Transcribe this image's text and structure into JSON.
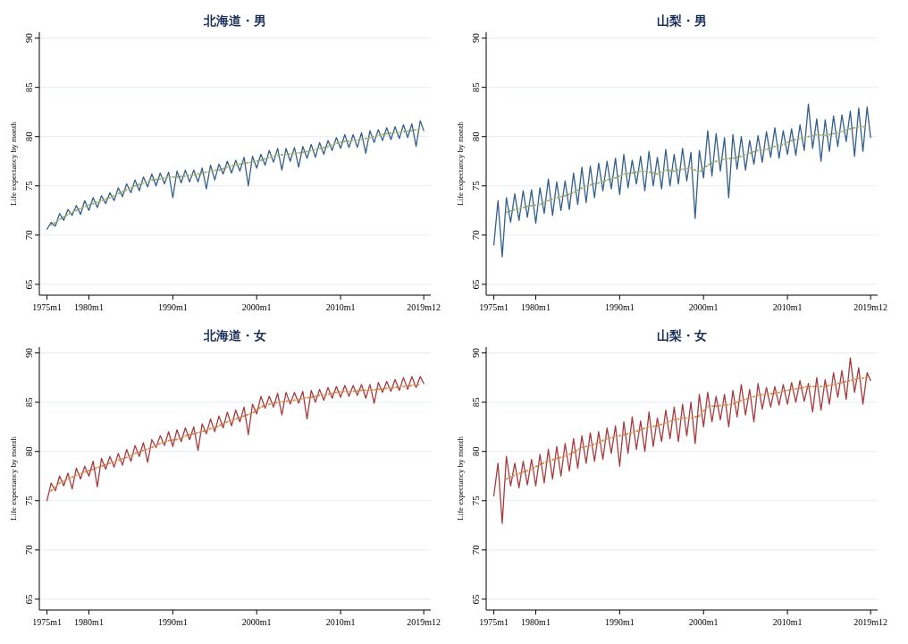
{
  "chart_data": [
    {
      "type": "line",
      "title": "北海道・男",
      "ylabel": "Life expectancy by month",
      "grid": "y",
      "xlim": [
        "1974-02",
        "2020-10"
      ],
      "ylim": [
        63.9,
        90.6
      ],
      "yticks": [
        65,
        70,
        75,
        80,
        85,
        90
      ],
      "xticks": [
        {
          "value": "1975-01",
          "label": "1975m1"
        },
        {
          "value": "1980-01",
          "label": "1980m1"
        },
        {
          "value": "1990-01",
          "label": "1990m1"
        },
        {
          "value": "2000-01",
          "label": "2000m1"
        },
        {
          "value": "2010-01",
          "label": "2010m1"
        },
        {
          "value": "2019-12",
          "label": "2019m12"
        }
      ],
      "x": [
        "1975-01",
        "1975-07",
        "1976-01",
        "1976-07",
        "1977-01",
        "1977-07",
        "1978-01",
        "1978-07",
        "1979-01",
        "1979-07",
        "1980-01",
        "1980-07",
        "1981-01",
        "1981-07",
        "1982-01",
        "1982-07",
        "1983-01",
        "1983-07",
        "1984-01",
        "1984-07",
        "1985-01",
        "1985-07",
        "1986-01",
        "1986-07",
        "1987-01",
        "1987-07",
        "1988-01",
        "1988-07",
        "1989-01",
        "1989-07",
        "1990-01",
        "1990-07",
        "1991-01",
        "1991-07",
        "1992-01",
        "1992-07",
        "1993-01",
        "1993-07",
        "1994-01",
        "1994-07",
        "1995-01",
        "1995-07",
        "1996-01",
        "1996-07",
        "1997-01",
        "1997-07",
        "1998-01",
        "1998-07",
        "1999-01",
        "1999-07",
        "2000-01",
        "2000-07",
        "2001-01",
        "2001-07",
        "2002-01",
        "2002-07",
        "2003-01",
        "2003-07",
        "2004-01",
        "2004-07",
        "2005-01",
        "2005-07",
        "2006-01",
        "2006-07",
        "2007-01",
        "2007-07",
        "2008-01",
        "2008-07",
        "2009-01",
        "2009-07",
        "2010-01",
        "2010-07",
        "2011-01",
        "2011-07",
        "2012-01",
        "2012-07",
        "2013-01",
        "2013-07",
        "2014-01",
        "2014-07",
        "2015-01",
        "2015-07",
        "2016-01",
        "2016-07",
        "2017-01",
        "2017-07",
        "2018-01",
        "2018-07",
        "2019-01",
        "2019-07",
        "2019-12"
      ],
      "series": [
        {
          "color": "#335f8a",
          "values": [
            70.6,
            71.3,
            70.9,
            72.2,
            71.5,
            72.6,
            72.0,
            73.0,
            72.1,
            73.5,
            72.5,
            73.8,
            72.8,
            74.0,
            73.2,
            74.3,
            73.5,
            74.8,
            73.9,
            75.2,
            74.3,
            75.6,
            74.5,
            75.9,
            74.9,
            76.2,
            75.0,
            76.3,
            75.2,
            76.4,
            73.8,
            76.5,
            75.3,
            76.6,
            75.4,
            76.6,
            75.4,
            76.8,
            74.7,
            77.1,
            75.6,
            77.2,
            76.2,
            77.5,
            76.3,
            77.6,
            76.5,
            77.9,
            75.0,
            78.0,
            76.8,
            78.2,
            77.1,
            78.6,
            77.4,
            78.8,
            76.6,
            78.8,
            77.5,
            78.9,
            76.9,
            79.0,
            77.8,
            79.2,
            77.9,
            79.4,
            78.2,
            79.6,
            78.6,
            79.9,
            78.8,
            80.2,
            78.9,
            80.2,
            78.9,
            80.4,
            78.3,
            80.6,
            79.4,
            80.7,
            79.6,
            80.9,
            79.7,
            81.0,
            79.8,
            81.2,
            79.9,
            81.3,
            79.0,
            81.6,
            80.6
          ]
        },
        {
          "color": "#9aab6b",
          "line_style": "dotted",
          "x": [
            "1975-07",
            "1976-07",
            "1977-07",
            "1978-07",
            "1979-07",
            "1980-07",
            "1981-07",
            "1982-07",
            "1983-07",
            "1984-07",
            "1985-07",
            "1986-07",
            "1987-07",
            "1988-07",
            "1989-07",
            "1990-07",
            "1991-07",
            "1992-07",
            "1993-07",
            "1994-07",
            "1995-07",
            "1996-07",
            "1997-07",
            "1998-07",
            "1999-07",
            "2000-07",
            "2001-07",
            "2002-07",
            "2003-07",
            "2004-07",
            "2005-07",
            "2006-07",
            "2007-07",
            "2008-07",
            "2009-07",
            "2010-07",
            "2011-07",
            "2012-07",
            "2013-07",
            "2014-07",
            "2015-07",
            "2016-07",
            "2017-07",
            "2018-07",
            "2019-07"
          ],
          "values": [
            71.0,
            71.6,
            72.1,
            72.5,
            72.9,
            73.2,
            73.5,
            73.8,
            74.2,
            74.6,
            75.0,
            75.3,
            75.6,
            75.7,
            75.9,
            75.9,
            76.0,
            76.1,
            76.3,
            76.5,
            76.6,
            76.9,
            77.1,
            77.3,
            77.4,
            77.6,
            77.9,
            78.1,
            78.2,
            78.3,
            78.4,
            78.6,
            78.8,
            79.0,
            79.3,
            79.5,
            79.6,
            79.7,
            79.9,
            80.1,
            80.3,
            80.4,
            80.5,
            80.6,
            80.8
          ]
        }
      ]
    },
    {
      "type": "line",
      "title": "山梨・男",
      "ylabel": "Life expectancy by month",
      "grid": "y",
      "xlim": [
        "1974-02",
        "2020-10"
      ],
      "ylim": [
        63.9,
        90.6
      ],
      "yticks": [
        65,
        70,
        75,
        80,
        85,
        90
      ],
      "xticks": [
        {
          "value": "1975-01",
          "label": "1975m1"
        },
        {
          "value": "1980-01",
          "label": "1980m1"
        },
        {
          "value": "1990-01",
          "label": "1990m1"
        },
        {
          "value": "2000-01",
          "label": "2000m1"
        },
        {
          "value": "2010-01",
          "label": "2010m1"
        },
        {
          "value": "2019-12",
          "label": "2019m12"
        }
      ],
      "x": [
        "1975-01",
        "1975-07",
        "1976-01",
        "1976-07",
        "1977-01",
        "1977-07",
        "1978-01",
        "1978-07",
        "1979-01",
        "1979-07",
        "1980-01",
        "1980-07",
        "1981-01",
        "1981-07",
        "1982-01",
        "1982-07",
        "1983-01",
        "1983-07",
        "1984-01",
        "1984-07",
        "1985-01",
        "1985-07",
        "1986-01",
        "1986-07",
        "1987-01",
        "1987-07",
        "1988-01",
        "1988-07",
        "1989-01",
        "1989-07",
        "1990-01",
        "1990-07",
        "1991-01",
        "1991-07",
        "1992-01",
        "1992-07",
        "1993-01",
        "1993-07",
        "1994-01",
        "1994-07",
        "1995-01",
        "1995-07",
        "1996-01",
        "1996-07",
        "1997-01",
        "1997-07",
        "1998-01",
        "1998-07",
        "1999-01",
        "1999-07",
        "2000-01",
        "2000-07",
        "2001-01",
        "2001-07",
        "2002-01",
        "2002-07",
        "2003-01",
        "2003-07",
        "2004-01",
        "2004-07",
        "2005-01",
        "2005-07",
        "2006-01",
        "2006-07",
        "2007-01",
        "2007-07",
        "2008-01",
        "2008-07",
        "2009-01",
        "2009-07",
        "2010-01",
        "2010-07",
        "2011-01",
        "2011-07",
        "2012-01",
        "2012-07",
        "2013-01",
        "2013-07",
        "2014-01",
        "2014-07",
        "2015-01",
        "2015-07",
        "2016-01",
        "2016-07",
        "2017-01",
        "2017-07",
        "2018-01",
        "2018-07",
        "2019-01",
        "2019-07",
        "2019-12"
      ],
      "series": [
        {
          "color": "#335f8a",
          "values": [
            69.0,
            73.5,
            67.8,
            73.8,
            71.3,
            74.2,
            71.5,
            74.5,
            71.8,
            74.6,
            71.2,
            74.8,
            72.2,
            75.7,
            72.0,
            75.4,
            72.5,
            75.5,
            72.6,
            76.3,
            73.1,
            76.9,
            73.3,
            77.0,
            73.8,
            77.3,
            74.5,
            77.5,
            74.7,
            77.8,
            74.1,
            78.2,
            74.8,
            77.6,
            75.2,
            78.0,
            74.5,
            78.5,
            75.0,
            77.9,
            74.7,
            78.7,
            75.0,
            78.2,
            75.2,
            78.8,
            75.5,
            78.4,
            71.7,
            78.6,
            75.8,
            80.6,
            76.0,
            80.3,
            76.5,
            79.9,
            73.8,
            80.2,
            76.7,
            80.0,
            76.6,
            79.6,
            77.2,
            80.1,
            77.4,
            80.5,
            77.9,
            80.9,
            77.8,
            80.6,
            78.2,
            80.8,
            78.1,
            81.2,
            78.6,
            83.3,
            78.8,
            81.8,
            77.5,
            81.7,
            78.5,
            82.1,
            79.0,
            82.2,
            79.5,
            82.6,
            78.0,
            82.9,
            78.5,
            83.0,
            79.9
          ]
        },
        {
          "color": "#9aab6b",
          "line_style": "dotted",
          "x": [
            "1976-07",
            "1977-07",
            "1978-07",
            "1979-07",
            "1980-07",
            "1981-07",
            "1982-07",
            "1983-07",
            "1984-07",
            "1985-07",
            "1986-07",
            "1987-07",
            "1988-07",
            "1989-07",
            "1990-07",
            "1991-07",
            "1992-07",
            "1993-07",
            "1994-07",
            "1995-07",
            "1996-07",
            "1997-07",
            "1998-07",
            "1999-07",
            "2000-07",
            "2001-07",
            "2002-07",
            "2003-07",
            "2004-07",
            "2005-07",
            "2006-07",
            "2007-07",
            "2008-07",
            "2009-07",
            "2010-07",
            "2011-07",
            "2012-07",
            "2013-07",
            "2014-07",
            "2015-07",
            "2016-07",
            "2017-07",
            "2018-07",
            "2019-07"
          ],
          "values": [
            72.3,
            72.6,
            72.8,
            73.0,
            73.1,
            73.5,
            73.8,
            74.0,
            74.3,
            74.8,
            75.1,
            75.3,
            75.6,
            75.8,
            76.2,
            76.3,
            76.5,
            76.4,
            76.2,
            76.6,
            76.5,
            76.7,
            76.8,
            76.4,
            77.1,
            77.5,
            77.7,
            77.8,
            78.0,
            78.3,
            78.6,
            78.7,
            79.0,
            79.2,
            79.6,
            79.8,
            80.0,
            80.2,
            80.1,
            80.3,
            80.5,
            80.8,
            81.0,
            81.0
          ]
        }
      ]
    },
    {
      "type": "line",
      "title": "北海道・女",
      "ylabel": "Life expectancy by month",
      "grid": "y",
      "xlim": [
        "1974-02",
        "2020-10"
      ],
      "ylim": [
        63.9,
        90.6
      ],
      "yticks": [
        65,
        70,
        75,
        80,
        85,
        90
      ],
      "xticks": [
        {
          "value": "1975-01",
          "label": "1975m1"
        },
        {
          "value": "1980-01",
          "label": "1980m1"
        },
        {
          "value": "1990-01",
          "label": "1990m1"
        },
        {
          "value": "2000-01",
          "label": "2000m1"
        },
        {
          "value": "2010-01",
          "label": "2010m1"
        },
        {
          "value": "2019-12",
          "label": "2019m12"
        }
      ],
      "x": [
        "1975-01",
        "1975-07",
        "1976-01",
        "1976-07",
        "1977-01",
        "1977-07",
        "1978-01",
        "1978-07",
        "1979-01",
        "1979-07",
        "1980-01",
        "1980-07",
        "1981-01",
        "1981-07",
        "1982-01",
        "1982-07",
        "1983-01",
        "1983-07",
        "1984-01",
        "1984-07",
        "1985-01",
        "1985-07",
        "1986-01",
        "1986-07",
        "1987-01",
        "1987-07",
        "1988-01",
        "1988-07",
        "1989-01",
        "1989-07",
        "1990-01",
        "1990-07",
        "1991-01",
        "1991-07",
        "1992-01",
        "1992-07",
        "1993-01",
        "1993-07",
        "1994-01",
        "1994-07",
        "1995-01",
        "1995-07",
        "1996-01",
        "1996-07",
        "1997-01",
        "1997-07",
        "1998-01",
        "1998-07",
        "1999-01",
        "1999-07",
        "2000-01",
        "2000-07",
        "2001-01",
        "2001-07",
        "2002-01",
        "2002-07",
        "2003-01",
        "2003-07",
        "2004-01",
        "2004-07",
        "2005-01",
        "2005-07",
        "2006-01",
        "2006-07",
        "2007-01",
        "2007-07",
        "2008-01",
        "2008-07",
        "2009-01",
        "2009-07",
        "2010-01",
        "2010-07",
        "2011-01",
        "2011-07",
        "2012-01",
        "2012-07",
        "2013-01",
        "2013-07",
        "2014-01",
        "2014-07",
        "2015-01",
        "2015-07",
        "2016-01",
        "2016-07",
        "2017-01",
        "2017-07",
        "2018-01",
        "2018-07",
        "2019-01",
        "2019-07",
        "2019-12"
      ],
      "series": [
        {
          "color": "#a63b3f",
          "values": [
            75.0,
            76.8,
            76.0,
            77.5,
            76.5,
            77.8,
            76.2,
            78.3,
            77.2,
            78.5,
            77.5,
            79.0,
            76.4,
            79.3,
            78.2,
            79.5,
            78.4,
            79.8,
            78.6,
            80.2,
            79.0,
            80.6,
            79.5,
            80.9,
            78.9,
            81.2,
            80.4,
            81.6,
            80.6,
            82.0,
            80.5,
            82.2,
            81.0,
            82.4,
            81.2,
            82.5,
            80.1,
            82.8,
            81.8,
            83.3,
            82.0,
            83.6,
            82.4,
            84.0,
            82.6,
            84.2,
            83.0,
            84.5,
            81.7,
            84.8,
            83.8,
            85.6,
            84.4,
            85.6,
            84.5,
            85.9,
            83.7,
            86.0,
            84.8,
            86.0,
            84.9,
            86.1,
            83.3,
            86.2,
            85.0,
            86.3,
            85.2,
            86.5,
            85.4,
            86.6,
            85.5,
            86.7,
            85.6,
            86.7,
            85.7,
            86.8,
            85.4,
            86.8,
            84.9,
            87.0,
            86.0,
            87.1,
            86.1,
            87.3,
            86.2,
            87.5,
            86.3,
            87.6,
            86.5,
            87.6,
            86.9
          ]
        },
        {
          "color": "#d9884f",
          "line_style": "dotted",
          "x": [
            "1975-07",
            "1976-07",
            "1977-07",
            "1978-07",
            "1979-07",
            "1980-07",
            "1981-07",
            "1982-07",
            "1983-07",
            "1984-07",
            "1985-07",
            "1986-07",
            "1987-07",
            "1988-07",
            "1989-07",
            "1990-07",
            "1991-07",
            "1992-07",
            "1993-07",
            "1994-07",
            "1995-07",
            "1996-07",
            "1997-07",
            "1998-07",
            "1999-07",
            "2000-07",
            "2001-07",
            "2002-07",
            "2003-07",
            "2004-07",
            "2005-07",
            "2006-07",
            "2007-07",
            "2008-07",
            "2009-07",
            "2010-07",
            "2011-07",
            "2012-07",
            "2013-07",
            "2014-07",
            "2015-07",
            "2016-07",
            "2017-07",
            "2018-07",
            "2019-07"
          ],
          "values": [
            76.0,
            76.8,
            77.2,
            77.6,
            77.9,
            78.2,
            78.5,
            78.8,
            79.1,
            79.4,
            79.8,
            80.1,
            80.4,
            80.8,
            81.1,
            81.2,
            81.6,
            81.8,
            82.0,
            82.3,
            82.6,
            83.0,
            83.3,
            83.6,
            83.9,
            84.5,
            84.8,
            85.0,
            85.1,
            85.2,
            85.4,
            85.5,
            85.7,
            85.8,
            86.0,
            86.1,
            86.1,
            86.2,
            86.2,
            86.3,
            86.4,
            86.5,
            86.6,
            86.7,
            86.8
          ]
        }
      ]
    },
    {
      "type": "line",
      "title": "山梨・女",
      "ylabel": "Life expectancy by month",
      "grid": "y",
      "xlim": [
        "1974-02",
        "2020-10"
      ],
      "ylim": [
        63.9,
        90.6
      ],
      "yticks": [
        65,
        70,
        75,
        80,
        85,
        90
      ],
      "xticks": [
        {
          "value": "1975-01",
          "label": "1975m1"
        },
        {
          "value": "1980-01",
          "label": "1980m1"
        },
        {
          "value": "1990-01",
          "label": "1990m1"
        },
        {
          "value": "2000-01",
          "label": "2000m1"
        },
        {
          "value": "2010-01",
          "label": "2010m1"
        },
        {
          "value": "2019-12",
          "label": "2019m12"
        }
      ],
      "x": [
        "1975-01",
        "1975-07",
        "1976-01",
        "1976-07",
        "1977-01",
        "1977-07",
        "1978-01",
        "1978-07",
        "1979-01",
        "1979-07",
        "1980-01",
        "1980-07",
        "1981-01",
        "1981-07",
        "1982-01",
        "1982-07",
        "1983-01",
        "1983-07",
        "1984-01",
        "1984-07",
        "1985-01",
        "1985-07",
        "1986-01",
        "1986-07",
        "1987-01",
        "1987-07",
        "1988-01",
        "1988-07",
        "1989-01",
        "1989-07",
        "1990-01",
        "1990-07",
        "1991-01",
        "1991-07",
        "1992-01",
        "1992-07",
        "1993-01",
        "1993-07",
        "1994-01",
        "1994-07",
        "1995-01",
        "1995-07",
        "1996-01",
        "1996-07",
        "1997-01",
        "1997-07",
        "1998-01",
        "1998-07",
        "1999-01",
        "1999-07",
        "2000-01",
        "2000-07",
        "2001-01",
        "2001-07",
        "2002-01",
        "2002-07",
        "2003-01",
        "2003-07",
        "2004-01",
        "2004-07",
        "2005-01",
        "2005-07",
        "2006-01",
        "2006-07",
        "2007-01",
        "2007-07",
        "2008-01",
        "2008-07",
        "2009-01",
        "2009-07",
        "2010-01",
        "2010-07",
        "2011-01",
        "2011-07",
        "2012-01",
        "2012-07",
        "2013-01",
        "2013-07",
        "2014-01",
        "2014-07",
        "2015-01",
        "2015-07",
        "2016-01",
        "2016-07",
        "2017-01",
        "2017-07",
        "2018-01",
        "2018-07",
        "2019-01",
        "2019-07",
        "2019-12"
      ],
      "series": [
        {
          "color": "#a63b3f",
          "values": [
            75.5,
            78.8,
            72.7,
            79.5,
            76.5,
            78.8,
            76.3,
            79.0,
            76.6,
            79.2,
            76.5,
            79.7,
            76.8,
            80.2,
            77.2,
            80.5,
            77.5,
            80.8,
            78.0,
            81.3,
            78.3,
            81.6,
            78.8,
            81.9,
            79.0,
            82.0,
            79.2,
            82.4,
            79.8,
            82.6,
            78.5,
            83.0,
            79.8,
            83.5,
            80.2,
            83.1,
            80.0,
            84.0,
            80.5,
            83.4,
            81.0,
            84.2,
            81.3,
            84.5,
            81.0,
            84.8,
            81.6,
            85.0,
            80.8,
            85.8,
            82.5,
            86.0,
            83.0,
            85.6,
            83.2,
            85.8,
            82.5,
            86.2,
            83.5,
            86.8,
            83.7,
            86.3,
            83.0,
            86.9,
            84.3,
            86.5,
            84.5,
            86.6,
            84.7,
            86.8,
            84.8,
            87.0,
            85.0,
            87.2,
            85.1,
            86.9,
            84.0,
            87.5,
            84.2,
            87.3,
            84.8,
            88.0,
            85.5,
            88.2,
            85.3,
            89.5,
            86.0,
            88.5,
            84.8,
            88.0,
            87.2
          ]
        },
        {
          "color": "#d9884f",
          "line_style": "dotted",
          "x": [
            "1976-07",
            "1977-07",
            "1978-07",
            "1979-07",
            "1980-07",
            "1981-07",
            "1982-07",
            "1983-07",
            "1984-07",
            "1985-07",
            "1986-07",
            "1987-07",
            "1988-07",
            "1989-07",
            "1990-07",
            "1991-07",
            "1992-07",
            "1993-07",
            "1994-07",
            "1995-07",
            "1996-07",
            "1997-07",
            "1998-07",
            "1999-07",
            "2000-07",
            "2001-07",
            "2002-07",
            "2003-07",
            "2004-07",
            "2005-07",
            "2006-07",
            "2007-07",
            "2008-07",
            "2009-07",
            "2010-07",
            "2011-07",
            "2012-07",
            "2013-07",
            "2014-07",
            "2015-07",
            "2016-07",
            "2017-07",
            "2018-07",
            "2019-07"
          ],
          "values": [
            77.2,
            77.6,
            77.9,
            78.2,
            78.7,
            79.0,
            79.3,
            79.5,
            79.9,
            80.4,
            80.6,
            80.9,
            81.3,
            81.5,
            81.7,
            81.9,
            82.2,
            82.5,
            82.6,
            82.9,
            83.2,
            83.4,
            83.4,
            83.6,
            84.6,
            84.6,
            84.7,
            84.8,
            85.2,
            85.4,
            85.7,
            85.8,
            85.9,
            86.1,
            86.3,
            86.4,
            86.6,
            86.6,
            86.6,
            86.8,
            87.0,
            87.2,
            87.4,
            87.5
          ]
        }
      ]
    }
  ]
}
